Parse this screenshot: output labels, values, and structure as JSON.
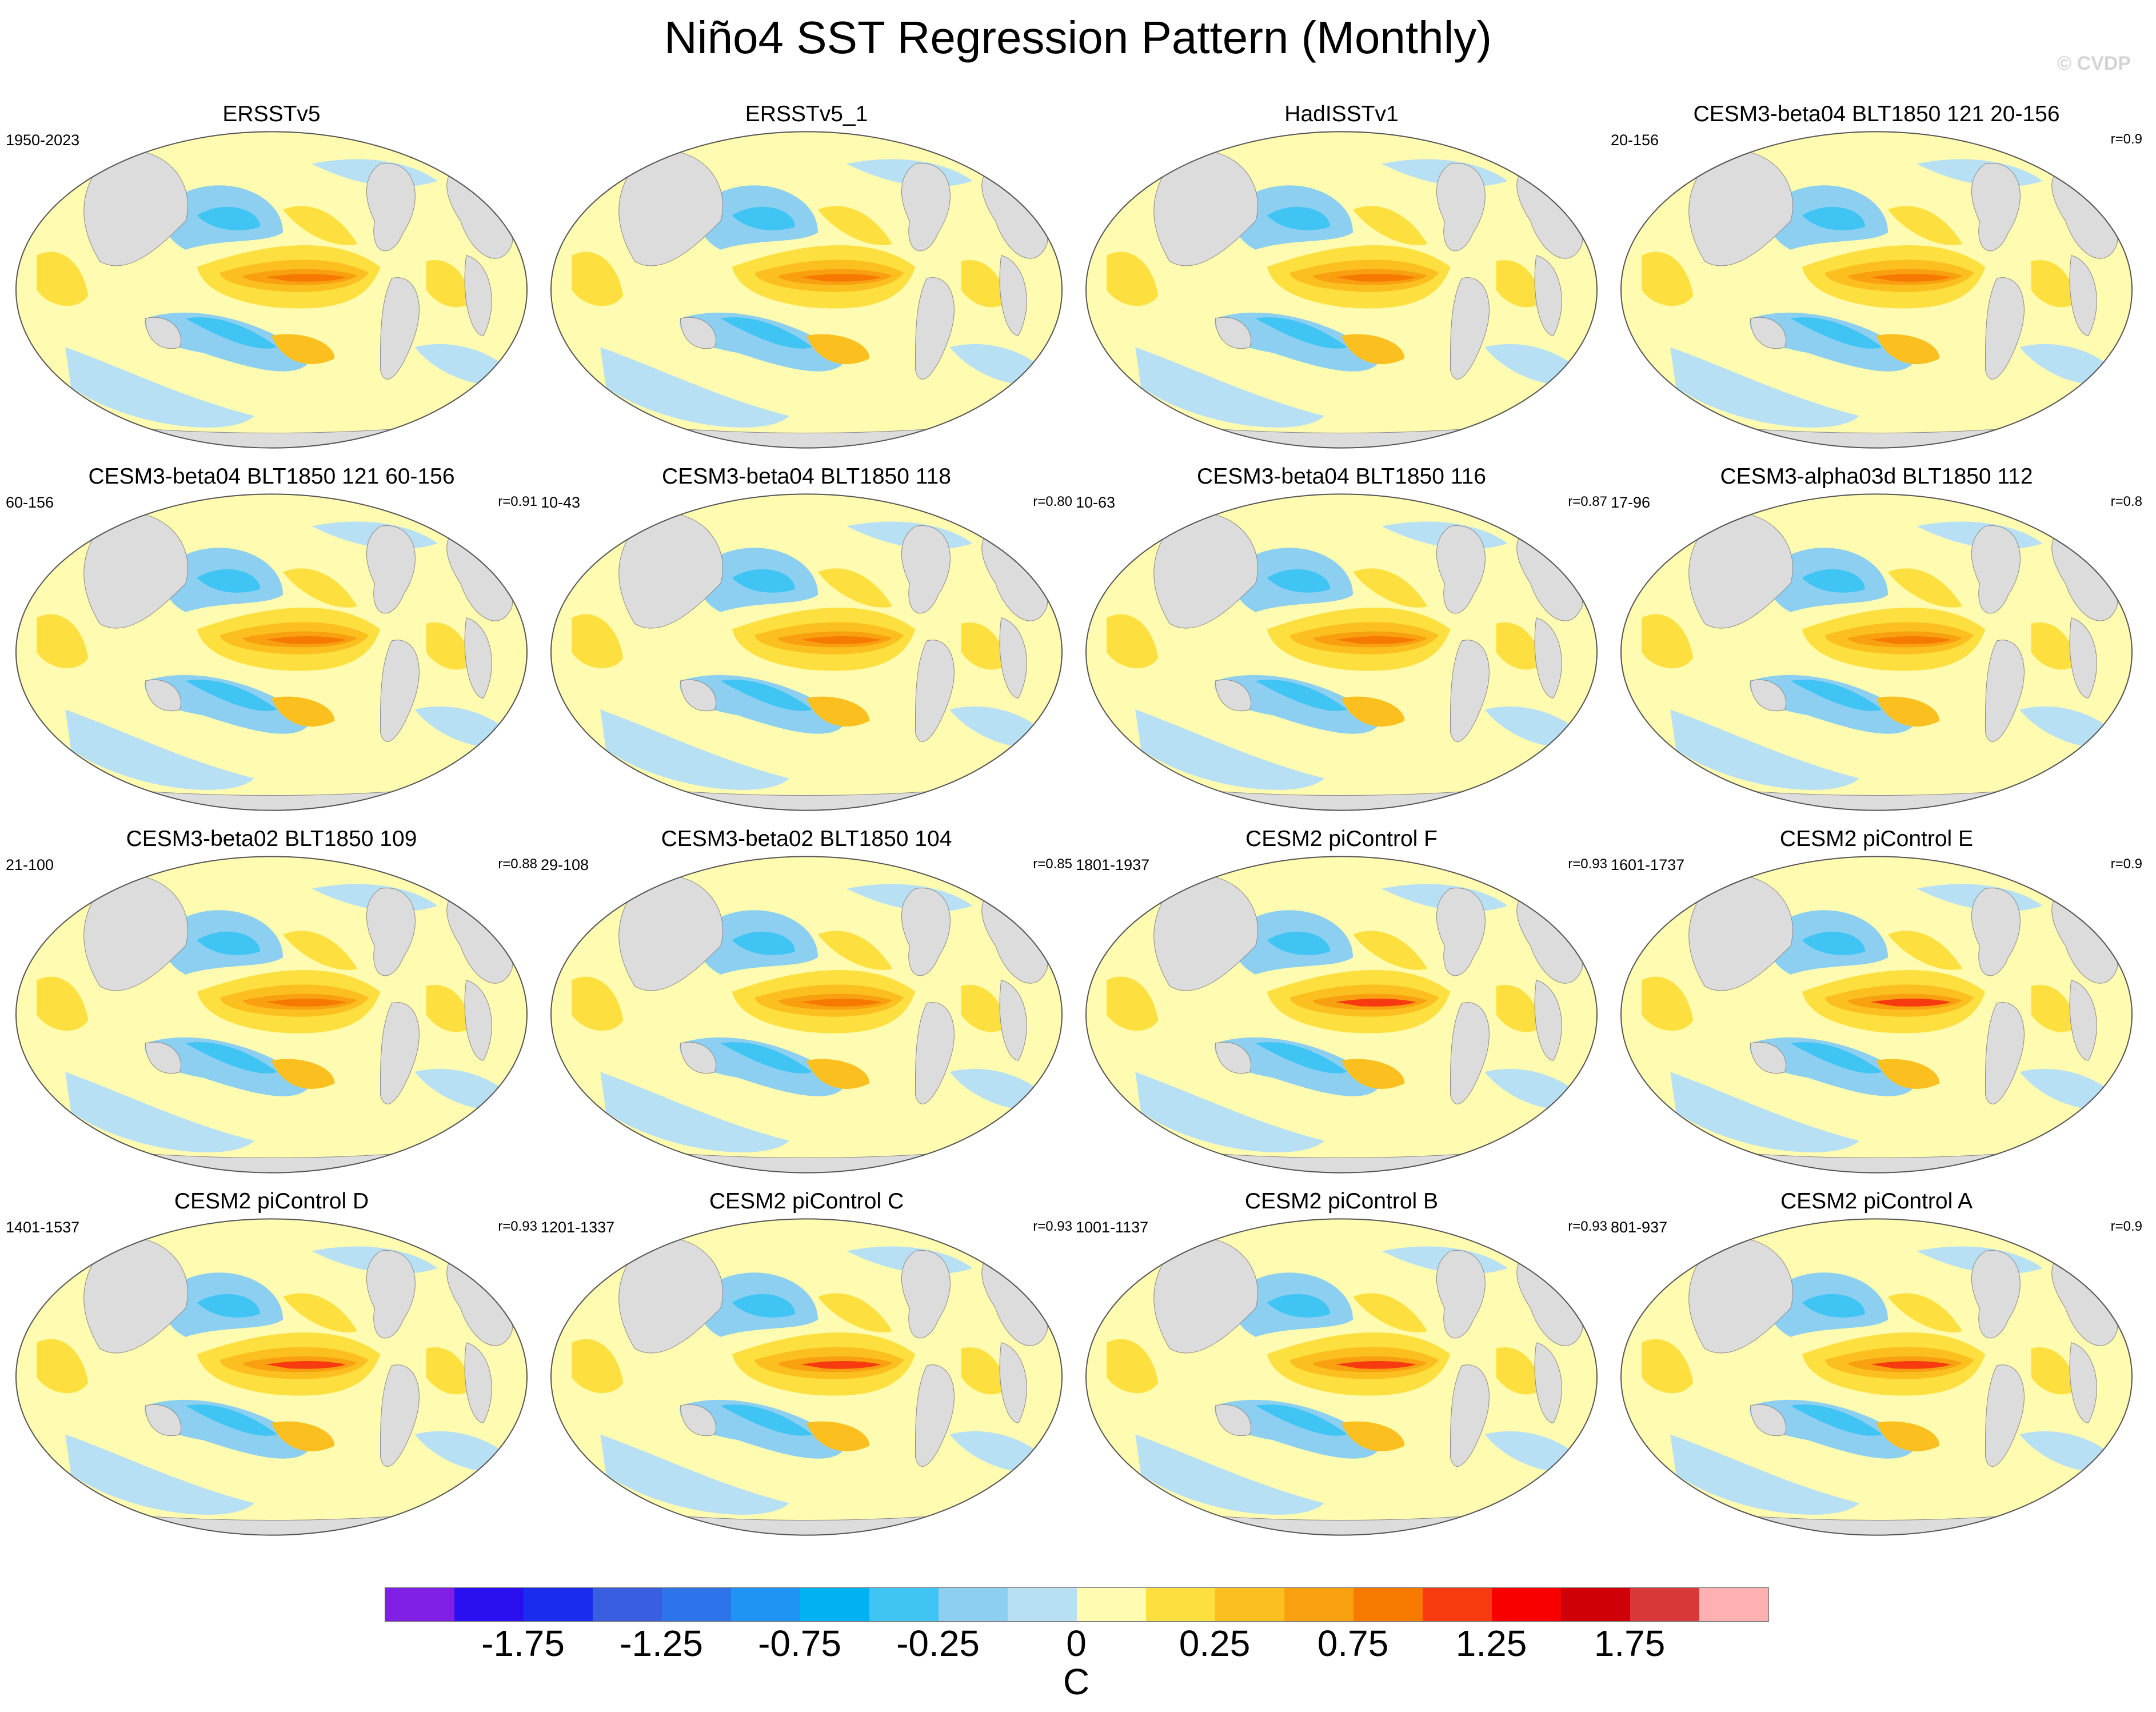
{
  "figure": {
    "title": "Niño4 SST Regression Pattern (Monthly)",
    "credit": "© CVDP",
    "land_color": "#dcdcdc",
    "ocean_neutral_color": "#fffbb0"
  },
  "panels": [
    {
      "title": "ERSSTv5",
      "years": "1950-2023",
      "r": ""
    },
    {
      "title": "ERSSTv5_1",
      "years": "",
      "r": ""
    },
    {
      "title": "HadISSTv1",
      "years": "",
      "r": ""
    },
    {
      "title": "CESM3-beta04 BLT1850 121 20-156",
      "years": "20-156",
      "r": "r=0.9"
    },
    {
      "title": "CESM3-beta04 BLT1850 121 60-156",
      "years": "60-156",
      "r": "r=0.91"
    },
    {
      "title": "CESM3-beta04 BLT1850 118",
      "years": "10-43",
      "r": "r=0.80"
    },
    {
      "title": "CESM3-beta04 BLT1850 116",
      "years": "10-63",
      "r": "r=0.87"
    },
    {
      "title": "CESM3-alpha03d BLT1850 112",
      "years": "17-96",
      "r": "r=0.8"
    },
    {
      "title": "CESM3-beta02 BLT1850 109",
      "years": "21-100",
      "r": "r=0.88"
    },
    {
      "title": "CESM3-beta02 BLT1850 104",
      "years": "29-108",
      "r": "r=0.85"
    },
    {
      "title": "CESM2 piControl F",
      "years": "1801-1937",
      "r": "r=0.93"
    },
    {
      "title": "CESM2 piControl E",
      "years": "1601-1737",
      "r": "r=0.9"
    },
    {
      "title": "CESM2 piControl D",
      "years": "1401-1537",
      "r": "r=0.93"
    },
    {
      "title": "CESM2 piControl C",
      "years": "1201-1337",
      "r": "r=0.93"
    },
    {
      "title": "CESM2 piControl B",
      "years": "1001-1137",
      "r": "r=0.93"
    },
    {
      "title": "CESM2 piControl A",
      "years": "801-937",
      "r": "r=0.9"
    }
  ],
  "colorbar": {
    "unit": "C",
    "colors": [
      "#8020e6",
      "#2a10f0",
      "#1a2cf0",
      "#3a5ee0",
      "#2d74ea",
      "#2094f4",
      "#00b2f2",
      "#40c4f4",
      "#8ccff0",
      "#b8e0f4",
      "#fffbb0",
      "#fde040",
      "#fbc020",
      "#f8a010",
      "#f77a00",
      "#f83a10",
      "#f80000",
      "#d00008",
      "#d83838",
      "#ffb0b0"
    ],
    "ticks": [
      {
        "label": "-1.75",
        "index": 2
      },
      {
        "label": "-1.25",
        "index": 4
      },
      {
        "label": "-0.75",
        "index": 6
      },
      {
        "label": "-0.25",
        "index": 8
      },
      {
        "label": "0",
        "index": 10
      },
      {
        "label": "0.25",
        "index": 12
      },
      {
        "label": "0.75",
        "index": 14
      },
      {
        "label": "1.25",
        "index": 16
      },
      {
        "label": "1.75",
        "index": 18
      }
    ]
  }
}
